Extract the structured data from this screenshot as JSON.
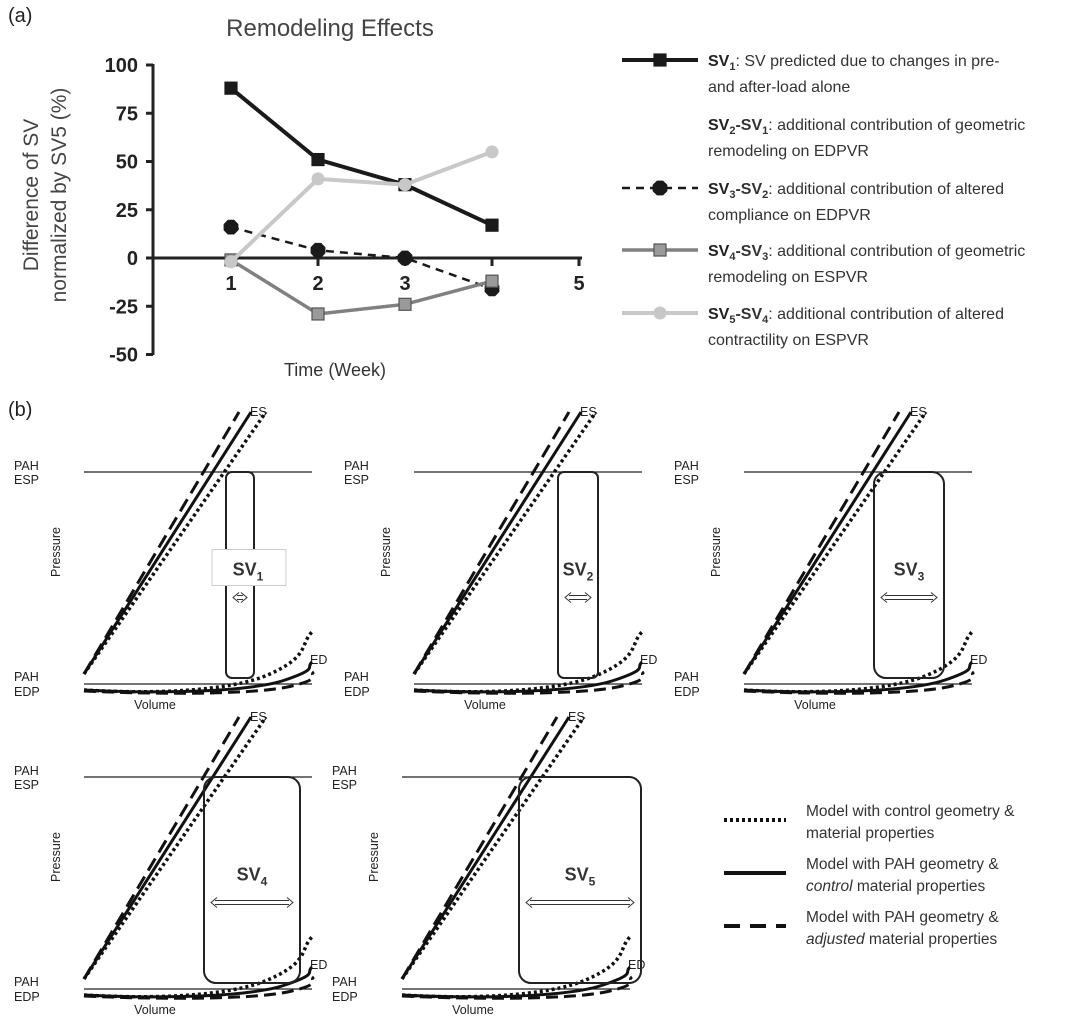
{
  "panel_a": {
    "label": "(a)",
    "title": "Remodeling Effects",
    "ylabel_line1": "Difference of SV",
    "ylabel_line2": "normalized by SV5 (%)",
    "xlabel": "Time (Week)",
    "yticks": [
      "100",
      "75",
      "50",
      "25",
      "0",
      "-25",
      "-50"
    ],
    "xticks": [
      "1",
      "2",
      "3",
      "4",
      "5"
    ]
  },
  "legend_a": [
    {
      "sym": "SV",
      "sub": "1",
      "line1": ": SV predicted due to changes in pre-",
      "line2": "and after-load alone"
    },
    {
      "sym": "SV",
      "sub": "2",
      "sym2": "-SV",
      "sub2": "1",
      "line1": ": additional contribution of geometric",
      "line2": "remodeling on EDPVR"
    },
    {
      "sym": "SV",
      "sub": "3",
      "sym2": "-SV",
      "sub2": "2",
      "line1": ": additional contribution of altered",
      "line2": "compliance on EDPVR"
    },
    {
      "sym": "SV",
      "sub": "4",
      "sym2": "-SV",
      "sub2": "3",
      "line1": ": additional contribution of geometric",
      "line2": "remodeling on ESPVR"
    },
    {
      "sym": "SV",
      "sub": "5",
      "sym2": "-SV",
      "sub2": "4",
      "line1": ": additional contribution of altered",
      "line2": "contractility on ESPVR"
    }
  ],
  "chart_data": [
    {
      "type": "line",
      "title": "Remodeling Effects",
      "xlabel": "Time (Week)",
      "ylabel": "Difference of SV normalized by SV5 (%)",
      "x": [
        1,
        2,
        3,
        4
      ],
      "xlim": [
        1,
        5
      ],
      "ylim": [
        -50,
        100
      ],
      "series": [
        {
          "name": "SV1",
          "values": [
            88,
            51,
            38,
            17
          ],
          "color": "#1a1a1a"
        },
        {
          "name": "SV2-SV1",
          "values": [
            null,
            null,
            null,
            null
          ],
          "color": "#1a1a1a"
        },
        {
          "name": "SV3-SV2",
          "values": [
            16,
            4,
            0,
            -16
          ],
          "color": "#1a1a1a"
        },
        {
          "name": "SV4-SV3",
          "values": [
            -1,
            -29,
            -24,
            -12
          ],
          "color": "#808080"
        },
        {
          "name": "SV5-SV4",
          "values": [
            -2,
            41,
            38,
            55
          ],
          "color": "#c4c4c4"
        }
      ]
    },
    {
      "type": "diagram",
      "panel_label": "(b)",
      "loops": [
        {
          "label": "SV",
          "sub": "1"
        },
        {
          "label": "SV",
          "sub": "2"
        },
        {
          "label": "SV",
          "sub": "3"
        },
        {
          "label": "SV",
          "sub": "4"
        },
        {
          "label": "SV",
          "sub": "5"
        }
      ],
      "axis_labels": {
        "pressure": "Pressure",
        "volume": "Volume",
        "es": "ES",
        "ed": "ED",
        "pah": "PAH",
        "esp": "ESP",
        "edp": "EDP"
      },
      "legend": [
        {
          "style": "dotted",
          "line1": "Model with control geometry &",
          "line2": "material properties",
          "line2_pre": "",
          "line2_italic": ""
        },
        {
          "style": "solid",
          "line1": "Model with PAH geometry &",
          "line2": " material properties",
          "line2_italic": "control"
        },
        {
          "style": "dashed",
          "line1": "Model with PAH geometry &",
          "line2": " material properties",
          "line2_italic": "adjusted"
        }
      ]
    }
  ]
}
